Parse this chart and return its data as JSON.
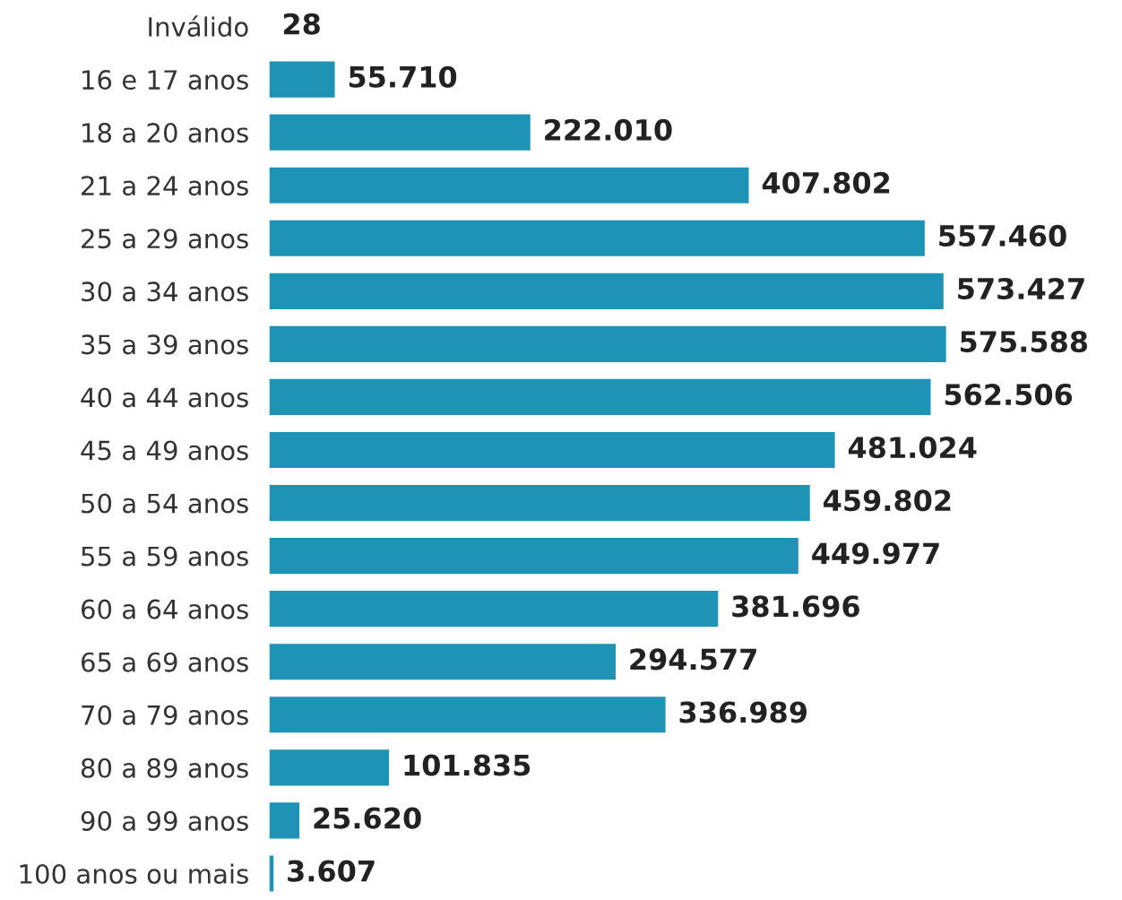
{
  "chart_data": {
    "type": "bar",
    "orientation": "horizontal",
    "categories": [
      "Inválido",
      "16 e 17 anos",
      "18 a 20 anos",
      "21 a 24 anos",
      "25 a 29 anos",
      "30 a 34 anos",
      "35 a 39 anos",
      "40 a 44 anos",
      "45 a 49 anos",
      "50 a 54 anos",
      "55 a 59 anos",
      "60 a 64 anos",
      "65 a 69 anos",
      "70 a 79 anos",
      "80 a 89 anos",
      "90 a 99 anos",
      "100 anos ou mais"
    ],
    "values": [
      28,
      55710,
      222010,
      407802,
      557460,
      573427,
      575588,
      562506,
      481024,
      459802,
      449977,
      381696,
      294577,
      336989,
      101835,
      25620,
      3607
    ],
    "value_labels": [
      "28",
      "55.710",
      "222.010",
      "407.802",
      "557.460",
      "573.427",
      "575.588",
      "562.506",
      "481.024",
      "459.802",
      "449.977",
      "381.696",
      "294.577",
      "336.989",
      "101.835",
      "25.620",
      "3.607"
    ],
    "color": "#1f93b6",
    "grid": false,
    "legend": false
  }
}
